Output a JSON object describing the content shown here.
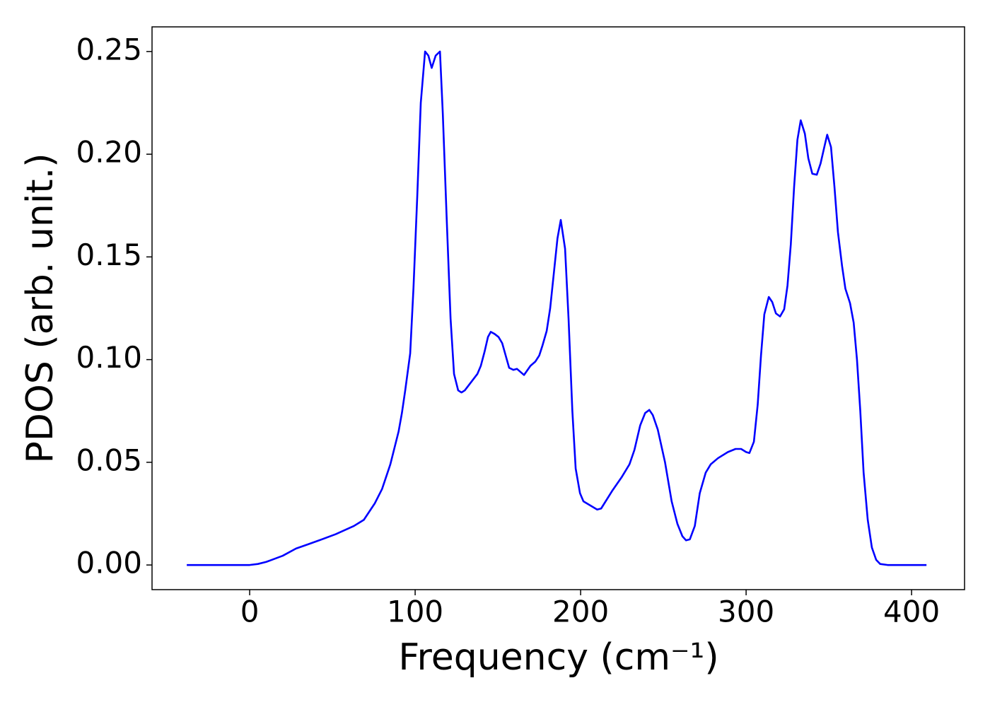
{
  "chart_data": {
    "type": "line",
    "xlabel": "Frequency (cm⁻¹)",
    "ylabel": "PDOS (arb. unit.)",
    "xlim": [
      -59,
      432
    ],
    "ylim": [
      -0.012,
      0.262
    ],
    "xticks": [
      0,
      100,
      200,
      300,
      400
    ],
    "yticks": [
      {
        "value": 0,
        "label": "0.00"
      },
      0.05,
      {
        "value": 0.1,
        "label": "0.10"
      },
      0.15,
      {
        "value": 0.2,
        "label": "0.20"
      },
      0.25
    ],
    "series": [
      {
        "name": "PDOS",
        "color": "#0000ff",
        "x": [
          -38,
          0,
          5,
          10,
          15,
          20,
          28,
          35,
          42,
          52,
          63,
          69,
          75.6,
          80,
          85,
          90,
          92,
          94,
          97,
          99,
          101.3,
          103.4,
          106,
          108,
          110,
          112.4,
          115,
          116.7,
          119,
          121.4,
          123.5,
          126,
          128,
          130,
          137.6,
          139.7,
          142,
          144,
          145.7,
          148,
          150.4,
          152.6,
          154.7,
          156.8,
          159.4,
          161.5,
          165.8,
          169.7,
          172.6,
          175,
          177,
          179.5,
          181.6,
          183.8,
          186,
          188,
          190.6,
          192.7,
          195,
          197,
          199.6,
          201.7,
          210,
          212.4,
          219,
          225,
          229.5,
          232.5,
          236,
          239,
          241.5,
          243.6,
          246.6,
          251,
          255,
          258.5,
          261.5,
          263.7,
          266,
          269,
          272,
          275.6,
          278.6,
          283,
          289,
          293.6,
          297,
          300,
          302,
          304.7,
          307,
          309,
          311,
          313.7,
          315.8,
          318,
          320.5,
          323,
          325,
          327,
          329,
          331,
          333,
          335.5,
          337.6,
          340,
          342.7,
          345,
          347.4,
          349,
          351.3,
          353.4,
          355.5,
          358,
          360,
          362.8,
          365,
          367,
          369,
          371,
          373.5,
          376,
          378.6,
          381,
          385.5,
          409
        ],
        "values": [
          0,
          0,
          0.0005,
          0.0015,
          0.003,
          0.0045,
          0.008,
          0.01,
          0.012,
          0.015,
          0.019,
          0.022,
          0.03,
          0.037,
          0.049,
          0.065,
          0.074,
          0.085,
          0.103,
          0.135,
          0.18,
          0.225,
          0.25,
          0.248,
          0.242,
          0.248,
          0.25,
          0.22,
          0.17,
          0.12,
          0.093,
          0.085,
          0.084,
          0.085,
          0.093,
          0.097,
          0.104,
          0.111,
          0.1135,
          0.1125,
          0.111,
          0.108,
          0.102,
          0.096,
          0.095,
          0.0955,
          0.0925,
          0.097,
          0.099,
          0.102,
          0.107,
          0.114,
          0.125,
          0.142,
          0.159,
          0.168,
          0.154,
          0.12,
          0.075,
          0.047,
          0.035,
          0.031,
          0.027,
          0.0275,
          0.036,
          0.043,
          0.049,
          0.056,
          0.068,
          0.074,
          0.0755,
          0.073,
          0.066,
          0.05,
          0.031,
          0.02,
          0.014,
          0.012,
          0.0125,
          0.019,
          0.035,
          0.045,
          0.049,
          0.052,
          0.055,
          0.0565,
          0.0565,
          0.055,
          0.0545,
          0.06,
          0.078,
          0.102,
          0.122,
          0.1305,
          0.128,
          0.1225,
          0.121,
          0.1245,
          0.136,
          0.156,
          0.184,
          0.207,
          0.2165,
          0.21,
          0.198,
          0.1905,
          0.19,
          0.1955,
          0.204,
          0.2095,
          0.2035,
          0.184,
          0.162,
          0.1455,
          0.1345,
          0.1275,
          0.118,
          0.1,
          0.075,
          0.045,
          0.022,
          0.0085,
          0.0025,
          0.0005,
          0,
          0
        ]
      }
    ]
  }
}
